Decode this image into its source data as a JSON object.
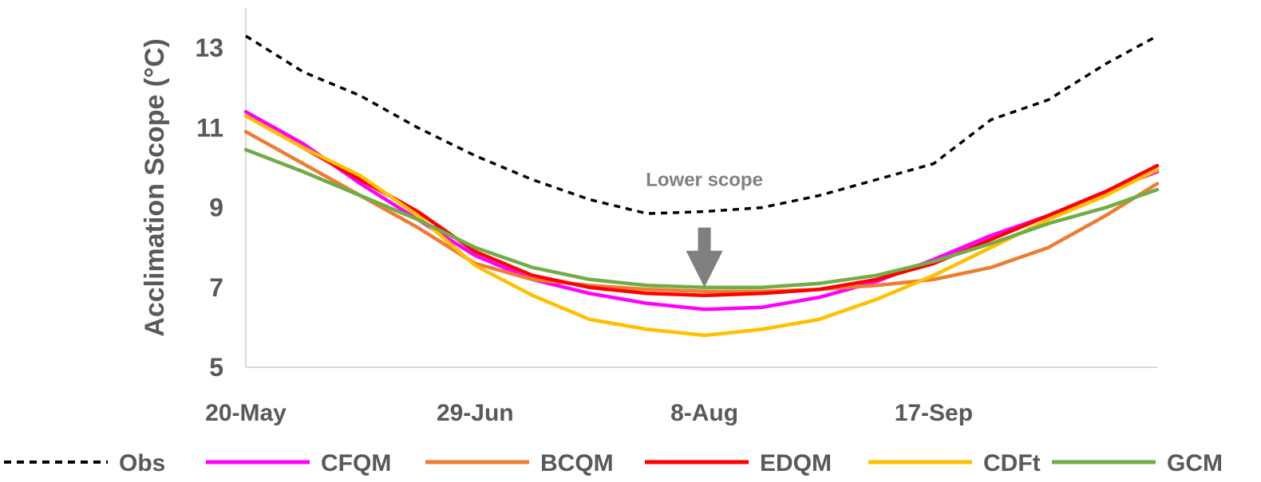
{
  "chart_data": {
    "type": "line",
    "title": "",
    "xlabel": "",
    "ylabel": "Acclimation Scope (°C)",
    "ylim": [
      5,
      14
    ],
    "y_ticks": [
      5,
      7,
      9,
      11,
      13
    ],
    "x_range": [
      "2000-05-20",
      "2000-10-26"
    ],
    "x_ticks": [
      {
        "date": "2000-05-20",
        "label": "20-May"
      },
      {
        "date": "2000-06-29",
        "label": "29-Jun"
      },
      {
        "date": "2000-08-08",
        "label": "8-Aug"
      },
      {
        "date": "2000-09-17",
        "label": "17-Sep"
      }
    ],
    "grid": false,
    "legend": "bottom",
    "x": [
      "2000-05-20",
      "2000-05-30",
      "2000-06-09",
      "2000-06-19",
      "2000-06-29",
      "2000-07-09",
      "2000-07-19",
      "2000-07-29",
      "2000-08-08",
      "2000-08-18",
      "2000-08-28",
      "2000-09-07",
      "2000-09-17",
      "2000-09-27",
      "2000-10-07",
      "2000-10-17",
      "2000-10-26"
    ],
    "series": [
      {
        "name": "Obs",
        "color": "#000000",
        "dash": true,
        "values": [
          13.3,
          12.4,
          11.8,
          11.0,
          10.3,
          9.7,
          9.2,
          8.85,
          8.9,
          9.0,
          9.3,
          9.7,
          10.1,
          11.2,
          11.7,
          12.6,
          13.3
        ]
      },
      {
        "name": "CFQM",
        "color": "#ff00ff",
        "dash": false,
        "values": [
          11.4,
          10.6,
          9.6,
          8.7,
          7.8,
          7.2,
          6.85,
          6.6,
          6.45,
          6.5,
          6.75,
          7.15,
          7.7,
          8.3,
          8.8,
          9.4,
          9.9
        ]
      },
      {
        "name": "BCQM",
        "color": "#ed7d31",
        "dash": false,
        "values": [
          10.9,
          10.1,
          9.3,
          8.5,
          7.6,
          7.2,
          7.05,
          6.95,
          6.9,
          6.9,
          6.95,
          7.05,
          7.2,
          7.5,
          8.0,
          8.8,
          9.6
        ]
      },
      {
        "name": "EDQM",
        "color": "#ff0000",
        "dash": false,
        "values": [
          11.3,
          10.5,
          9.7,
          8.9,
          7.9,
          7.3,
          7.0,
          6.85,
          6.8,
          6.85,
          6.95,
          7.2,
          7.6,
          8.2,
          8.8,
          9.4,
          10.05
        ]
      },
      {
        "name": "CDFt",
        "color": "#ffc000",
        "dash": false,
        "values": [
          11.3,
          10.5,
          9.8,
          8.8,
          7.55,
          6.8,
          6.2,
          5.95,
          5.8,
          5.95,
          6.2,
          6.7,
          7.3,
          8.0,
          8.7,
          9.3,
          9.95
        ]
      },
      {
        "name": "GCM",
        "color": "#70ad47",
        "dash": false,
        "values": [
          10.45,
          9.9,
          9.3,
          8.7,
          8.0,
          7.5,
          7.2,
          7.05,
          7.0,
          7.0,
          7.1,
          7.3,
          7.65,
          8.1,
          8.6,
          9.0,
          9.45
        ]
      }
    ],
    "annotation": {
      "text": "Lower scope",
      "arrow_date": "2000-08-08",
      "arrow_y_top": 8.5,
      "arrow_y_bottom": 7.0,
      "color": "#7f7f7f"
    }
  }
}
